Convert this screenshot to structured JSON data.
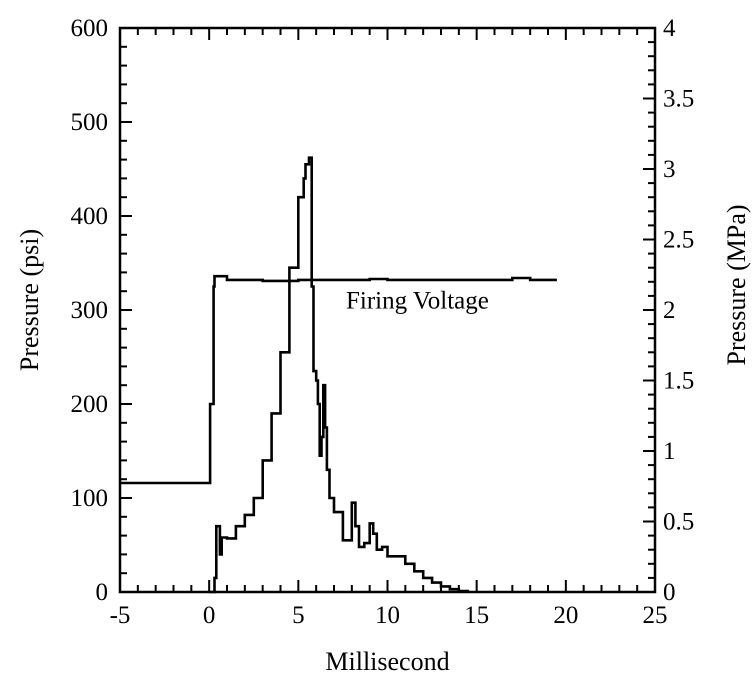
{
  "chart_data": {
    "type": "line",
    "xlabel": "Millisecond",
    "ylabel": "Pressure (psi)",
    "y2label": "Pressure (MPa)",
    "xlim": [
      -5,
      25
    ],
    "ylim": [
      0,
      600
    ],
    "y2lim": [
      0,
      4
    ],
    "xticks": [
      "-5",
      "0",
      "5",
      "10",
      "15",
      "20",
      "25"
    ],
    "yticks": [
      "0",
      "100",
      "200",
      "300",
      "400",
      "500",
      "600"
    ],
    "y2ticks": [
      "0",
      "0.5",
      "1",
      "1.5",
      "2",
      "2.5",
      "3",
      "3.5",
      "4"
    ],
    "grid": false,
    "annotations": [
      {
        "text": "Firing Voltage",
        "x": 13,
        "y": 307
      }
    ],
    "series": [
      {
        "name": "Firing Voltage",
        "x": [
          -5,
          0,
          0.05,
          0.25,
          0.3,
          1,
          3,
          5,
          7,
          9,
          10,
          12,
          15,
          17,
          18,
          19.5
        ],
        "y": [
          116,
          116,
          200,
          325,
          336,
          332,
          331,
          332,
          332,
          333,
          332,
          332,
          332,
          334,
          332,
          332
        ]
      },
      {
        "name": "",
        "x": [
          0,
          0.3,
          0.4,
          0.6,
          0.7,
          1,
          1.5,
          2,
          2.5,
          3,
          3.5,
          4,
          4.5,
          5,
          5.3,
          5.4,
          5.6,
          5.75,
          5.85,
          6,
          6.1,
          6.2,
          6.3,
          6.4,
          6.5,
          6.6,
          6.75,
          7,
          7.5,
          8,
          8.2,
          8.4,
          8.7,
          9,
          9.2,
          9.4,
          9.7,
          10,
          10.5,
          11,
          11.5,
          12,
          12.5,
          13,
          13.5,
          14,
          14.5
        ],
        "y": [
          0,
          15,
          70,
          40,
          58,
          57,
          70,
          82,
          100,
          140,
          190,
          255,
          345,
          420,
          440,
          455,
          462,
          325,
          235,
          225,
          200,
          145,
          165,
          220,
          175,
          130,
          100,
          85,
          55,
          95,
          70,
          48,
          52,
          73,
          62,
          45,
          48,
          38,
          38,
          30,
          22,
          15,
          10,
          6,
          3,
          1,
          0
        ]
      }
    ]
  }
}
